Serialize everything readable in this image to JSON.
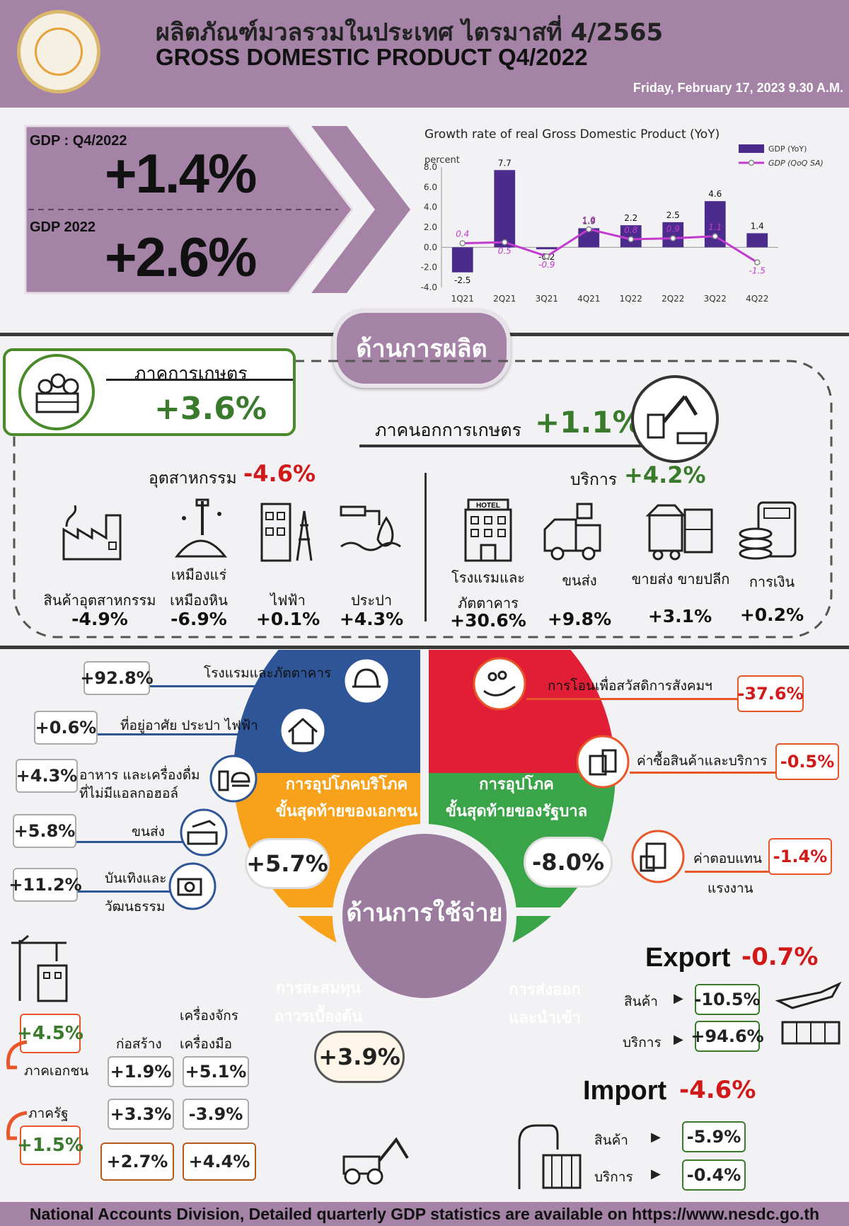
{
  "header": {
    "title_th": "ผลิตภัณฑ์มวลรวมในประเทศ ไตรมาสที่ 4/2565",
    "title_en": "GROSS DOMESTIC PRODUCT Q4/2022",
    "release_date": "Friday, February 17, 2023  9.30 A.M."
  },
  "summary": {
    "q_label": "GDP : Q4/2022",
    "q_value": "+1.4%",
    "y_label": "GDP 2022",
    "y_value": "+2.6%"
  },
  "chart_data": {
    "type": "bar",
    "title": "Growth rate of real Gross Domestic Product (YoY)",
    "ylabel": "percent",
    "categories": [
      "1Q21",
      "2Q21",
      "3Q21",
      "4Q21",
      "1Q22",
      "2Q22",
      "3Q22",
      "4Q22"
    ],
    "ylim": [
      -4.0,
      8.0
    ],
    "yticks": [
      "8.0",
      "6.0",
      "4.0",
      "2.0",
      "0.0",
      "-2.0",
      "-4.0"
    ],
    "series": [
      {
        "name": "GDP (YoY)",
        "type": "bar",
        "color": "#4b2c8c",
        "values": [
          -2.5,
          7.7,
          -0.2,
          1.9,
          2.2,
          2.5,
          4.6,
          1.4
        ],
        "labels": [
          "-2.5",
          "7.7",
          "-0.2",
          "1.9",
          "2.2",
          "2.5",
          "4.6",
          "1.4"
        ]
      },
      {
        "name": "GDP (QoQ SA)",
        "type": "line",
        "color": "#c23ad0",
        "values": [
          0.4,
          0.5,
          -0.9,
          1.8,
          0.8,
          0.9,
          1.1,
          -1.5
        ],
        "labels": [
          "0.4",
          "0.5",
          "-0.9",
          "1.8",
          "0.8",
          "0.9",
          "1.1",
          "-1.5"
        ]
      }
    ],
    "legend": "top-right"
  },
  "production": {
    "title": "ด้านการผลิต",
    "agri_label": "ภาคการเกษตร",
    "agri_value": "+3.6%",
    "nonagri_label": "ภาคนอกการเกษตร",
    "nonagri_value": "+1.1%",
    "industry_label": "อุตสาหกรรม",
    "industry_value": "-4.6%",
    "services_label": "บริการ",
    "services_value": "+4.2%",
    "industry_items": [
      {
        "label": "สินค้าอุตสาหกรรม",
        "value": "-4.9%"
      },
      {
        "label": "เหมืองแร่",
        "label2": "เหมืองหิน",
        "value": "-6.9%"
      },
      {
        "label": "ไฟฟ้า",
        "value": "+0.1%"
      },
      {
        "label": "ประปา",
        "value": "+4.3%"
      }
    ],
    "service_items": [
      {
        "label": "โรงแรมและ",
        "label2": "ภัตตาคาร",
        "value": "+30.6%",
        "icon_text": "HOTEL"
      },
      {
        "label": "ขนส่ง",
        "value": "+9.8%"
      },
      {
        "label": "ขายส่ง ขายปลีก",
        "value": "+3.1%"
      },
      {
        "label": "การเงิน",
        "value": "+0.2%"
      }
    ]
  },
  "expenditure": {
    "center": "ด้านการใช้จ่าย",
    "private": {
      "label1": "การอุปโภคบริโภค",
      "label2": "ขั้นสุดท้ายของเอกชน",
      "value": "+5.7%",
      "items": [
        {
          "value": "+92.8%",
          "label": "โรงแรมและภัตตาคาร"
        },
        {
          "value": "+0.6%",
          "label": "ที่อยู่อาศัย ประปา ไฟฟ้า"
        },
        {
          "value": "+4.3%",
          "label": "อาหาร และเครื่องดื่ม",
          "label2": "ที่ไม่มีแอลกอฮอล์"
        },
        {
          "value": "+5.8%",
          "label": "ขนส่ง"
        },
        {
          "value": "+11.2%",
          "label": "บันเทิงและ",
          "label2": "วัฒนธรรม"
        }
      ]
    },
    "government": {
      "label1": "การอุปโภค",
      "label2": "ขั้นสุดท้ายของรัฐบาล",
      "value": "-8.0%",
      "items": [
        {
          "value": "-37.6%",
          "label": "การโอนเพื่อสวัสดิการสังคมฯ"
        },
        {
          "value": "-0.5%",
          "label": "ค่าซื้อสินค้าและบริการ"
        },
        {
          "value": "-1.4%",
          "label": "ค่าตอบแทน",
          "label2": "แรงงาน"
        }
      ]
    },
    "investment": {
      "label1": "การสะสมทุน",
      "label2": "ถาวรเบื้องต้น",
      "value": "+3.9%",
      "private_label": "ภาคเอกชน",
      "private_value": "+4.5%",
      "public_label": "ภาครัฐ",
      "public_value": "+1.5%",
      "col_construction": "ก่อสร้าง",
      "col_machinery_1": "เครื่องจักร",
      "col_machinery_2": "เครื่องมือ",
      "private_construction": "+1.9%",
      "private_machinery": "+5.1%",
      "public_construction": "+3.3%",
      "public_machinery": "-3.9%",
      "total_construction": "+2.7%",
      "total_machinery": "+4.4%"
    },
    "trade": {
      "label1": "การส่งออก",
      "label2": "และนำเข้า",
      "export_label": "Export",
      "export_value": "-0.7%",
      "export_goods_label": "สินค้า",
      "export_goods": "-10.5%",
      "export_services_label": "บริการ",
      "export_services": "+94.6%",
      "import_label": "Import",
      "import_value": "-4.6%",
      "import_goods_label": "สินค้า",
      "import_goods": "-5.9%",
      "import_services_label": "บริการ",
      "import_services": "-0.4%"
    }
  },
  "footer": "National Accounts Division, Detailed quarterly GDP statistics are available on https://www.nesdc.go.th",
  "colors": {
    "header": "#a483a6",
    "private": "#2e5597",
    "government": "#e21e36",
    "investment": "#f7a21a",
    "trade": "#3aa548",
    "positive": "#3a7a2c",
    "negative": "#d11919"
  }
}
